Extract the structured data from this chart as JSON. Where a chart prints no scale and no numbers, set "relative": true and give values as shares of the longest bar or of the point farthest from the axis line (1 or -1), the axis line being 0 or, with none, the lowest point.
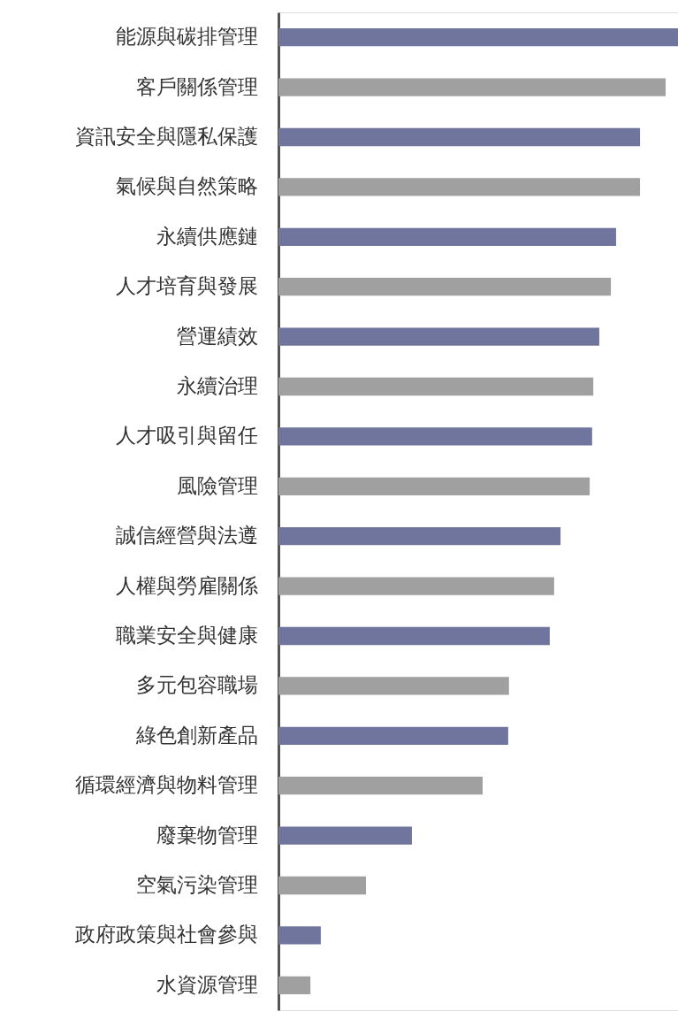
{
  "chart_data": {
    "type": "bar",
    "orientation": "horizontal",
    "relative": true,
    "categories": [
      "能源與碳排管理",
      "客戶關係管理",
      "資訊安全與隱私保護",
      "氣候與自然策略",
      "永續供應鏈",
      "人才培育與發展",
      "營運績效",
      "永續治理",
      "人才吸引與留任",
      "風險管理",
      "誠信經營與法遵",
      "人權與勞雇關係",
      "職業安全與健康",
      "多元包容職場",
      "綠色創新產品",
      "循環經濟與物料管理",
      "廢棄物管理",
      "空氣污染管理",
      "政府政策與社會參與",
      "水資源管理"
    ],
    "values": [
      1,
      0.969,
      0.905,
      0.905,
      0.845,
      0.832,
      0.803,
      0.788,
      0.785,
      0.779,
      0.706,
      0.69,
      0.679,
      0.577,
      0.575,
      0.511,
      0.334,
      0.219,
      0.106,
      0.08
    ],
    "colors": [
      "#6f759c",
      "#a0a0a0",
      "#6f759c",
      "#a0a0a0",
      "#6f759c",
      "#a0a0a0",
      "#6f759c",
      "#a0a0a0",
      "#6f759c",
      "#a0a0a0",
      "#6f759c",
      "#a0a0a0",
      "#6f759c",
      "#a0a0a0",
      "#6f759c",
      "#a0a0a0",
      "#6f759c",
      "#a0a0a0",
      "#6f759c",
      "#a0a0a0"
    ]
  }
}
